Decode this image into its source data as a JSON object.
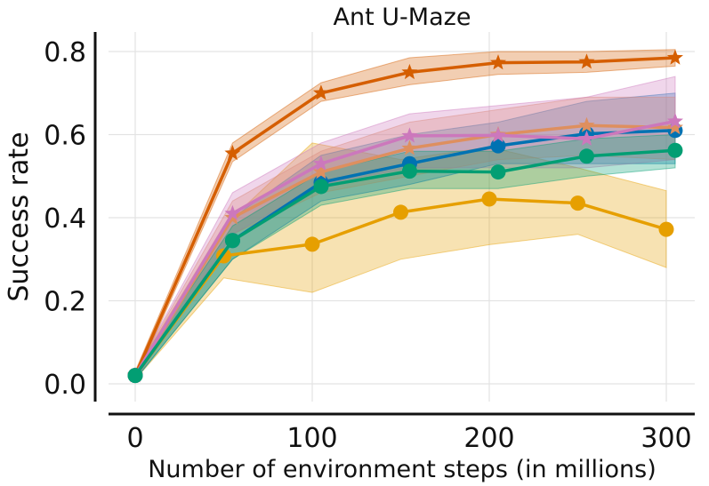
{
  "chart_data": {
    "type": "line",
    "title": "Ant U-Maze",
    "xlabel": "Number of environment steps (in millions)",
    "ylabel": "Success rate",
    "xlim": [
      -15,
      320
    ],
    "ylim": [
      -0.04,
      0.85
    ],
    "xticks": [
      0,
      100,
      200,
      300
    ],
    "yticks": [
      0.0,
      0.2,
      0.4,
      0.6,
      0.8
    ],
    "xtick_labels": [
      "0",
      "100",
      "200",
      "300"
    ],
    "ytick_labels": [
      "0.0",
      "0.2",
      "0.4",
      "0.6",
      "0.8"
    ],
    "grid": true,
    "x": [
      0,
      50,
      100,
      150,
      200,
      250,
      300
    ],
    "series": [
      {
        "name": "series-dark-orange-star",
        "color": "#d55e00",
        "marker": "star",
        "x_offset": 5,
        "values": [
          0.02,
          0.555,
          0.7,
          0.75,
          0.773,
          0.775,
          0.785
        ],
        "lower": [
          0.01,
          0.535,
          0.68,
          0.72,
          0.745,
          0.75,
          0.765
        ],
        "upper": [
          0.03,
          0.58,
          0.725,
          0.785,
          0.8,
          0.8,
          0.805
        ]
      },
      {
        "name": "series-gold-circle",
        "color": "#e69f00",
        "marker": "circle",
        "x_offset": 0,
        "values": [
          0.02,
          0.308,
          0.336,
          0.413,
          0.445,
          0.435,
          0.372
        ],
        "lower": [
          0.01,
          0.255,
          0.22,
          0.3,
          0.335,
          0.36,
          0.28
        ],
        "upper": [
          0.03,
          0.38,
          0.58,
          0.54,
          0.57,
          0.52,
          0.465
        ]
      },
      {
        "name": "series-blue-circle",
        "color": "#0072b2",
        "marker": "circle",
        "x_offset": 5,
        "values": [
          0.02,
          0.345,
          0.485,
          0.53,
          0.573,
          0.602,
          0.61
        ],
        "lower": [
          0.01,
          0.3,
          0.44,
          0.48,
          0.53,
          0.53,
          0.53
        ],
        "upper": [
          0.03,
          0.4,
          0.55,
          0.6,
          0.63,
          0.68,
          0.7
        ]
      },
      {
        "name": "series-tan-star",
        "color": "#de8f5f",
        "marker": "star",
        "x_offset": 5,
        "values": [
          0.02,
          0.4,
          0.51,
          0.567,
          0.6,
          0.622,
          0.617
        ],
        "lower": [
          0.01,
          0.36,
          0.46,
          0.5,
          0.54,
          0.55,
          0.54
        ],
        "upper": [
          0.03,
          0.44,
          0.56,
          0.63,
          0.66,
          0.69,
          0.69
        ]
      },
      {
        "name": "series-pink-star",
        "color": "#cc78bc",
        "marker": "star",
        "x_offset": 5,
        "values": [
          0.02,
          0.41,
          0.53,
          0.597,
          0.598,
          0.59,
          0.632
        ],
        "lower": [
          0.01,
          0.36,
          0.48,
          0.52,
          0.52,
          0.52,
          0.54
        ],
        "upper": [
          0.03,
          0.46,
          0.58,
          0.65,
          0.67,
          0.69,
          0.74
        ]
      },
      {
        "name": "series-green-circle",
        "color": "#029e73",
        "marker": "circle",
        "x_offset": 5,
        "values": [
          0.02,
          0.345,
          0.475,
          0.512,
          0.51,
          0.548,
          0.562
        ],
        "lower": [
          0.01,
          0.3,
          0.43,
          0.47,
          0.47,
          0.5,
          0.52
        ],
        "upper": [
          0.03,
          0.38,
          0.51,
          0.56,
          0.56,
          0.59,
          0.6
        ]
      }
    ]
  }
}
